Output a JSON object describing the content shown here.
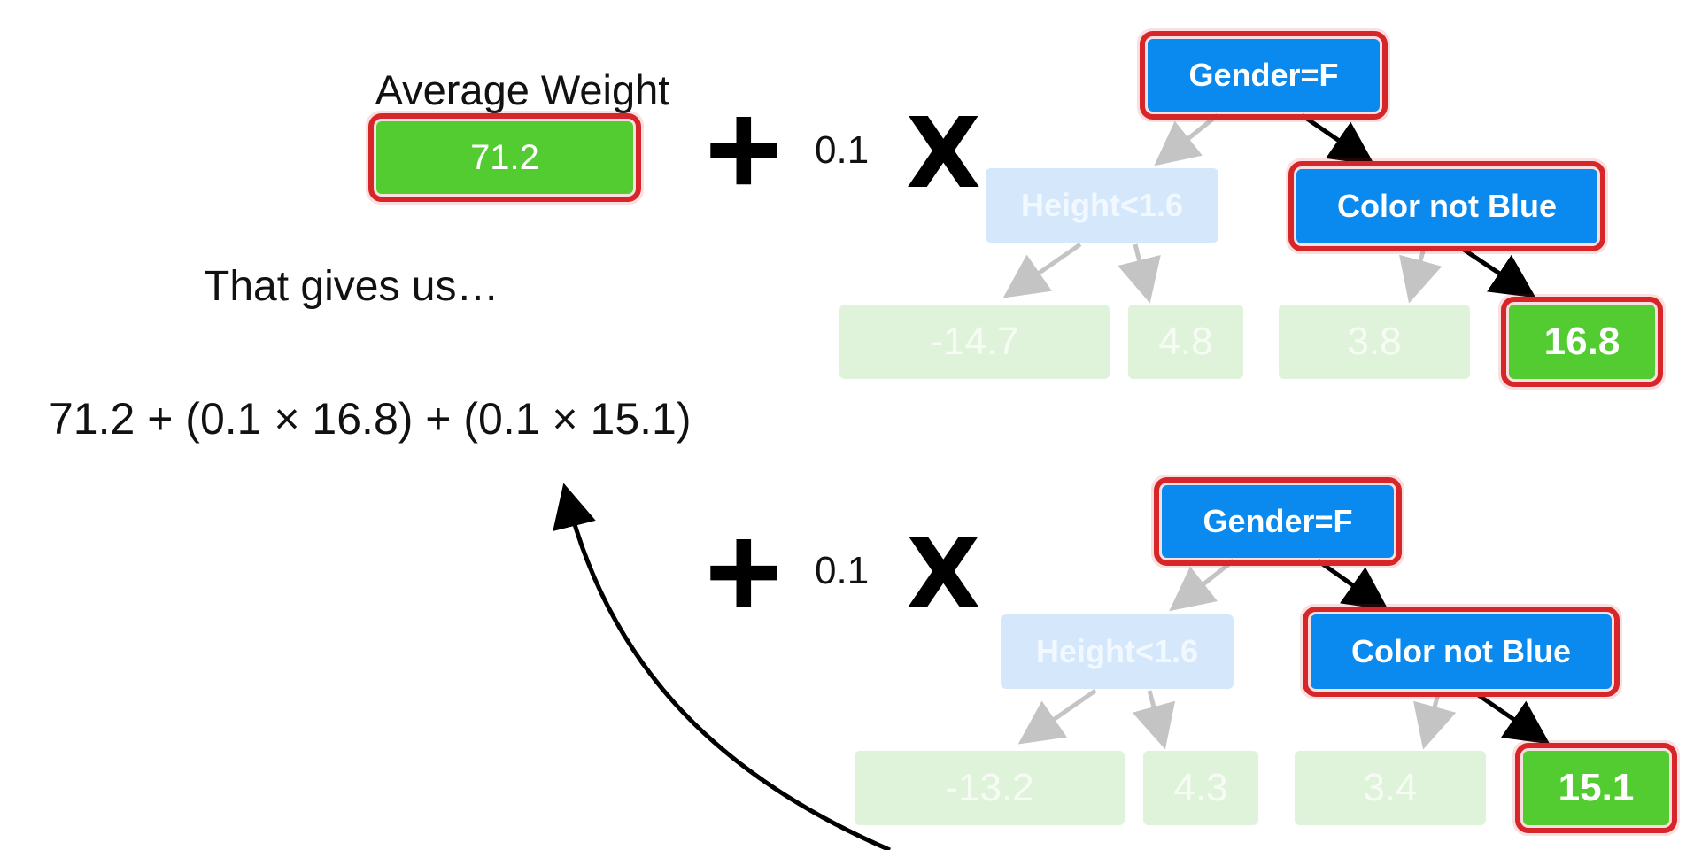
{
  "average": {
    "title": "Average Weight",
    "value": "71.2"
  },
  "gives_text": "That gives us…",
  "formula": "71.2 + (0.1 × 16.8) + (0.1 × 15.1)",
  "operators": {
    "plus": "+",
    "times": "X",
    "rate": "0.1"
  },
  "tree1": {
    "root": "Gender=F",
    "left_split": "Height<1.6",
    "right_split": "Color not Blue",
    "leaves": [
      "-14.7",
      "4.8",
      "3.8",
      "16.8"
    ]
  },
  "tree2": {
    "root": "Gender=F",
    "left_split": "Height<1.6",
    "right_split": "Color not Blue",
    "leaves": [
      "-13.2",
      "4.3",
      "3.4",
      "15.1"
    ]
  },
  "colors": {
    "highlight": "#d7262a",
    "node_blue": "#0a8aef",
    "leaf_green": "#52cc30",
    "faded_blue": "#d5e7fb",
    "faded_green": "#dff3da"
  }
}
